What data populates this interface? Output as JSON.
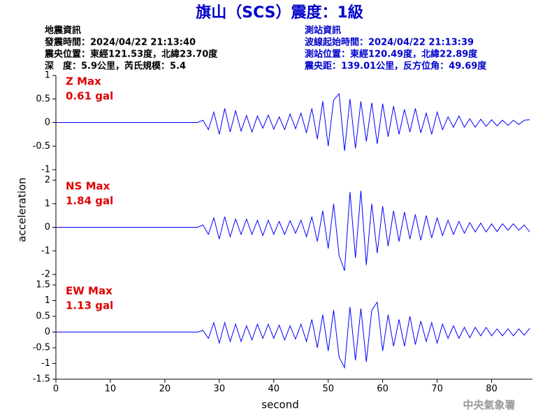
{
  "title": "旗山（SCS）震度：1級",
  "event_info": [
    "地震資訊",
    "發震時間：2024/04/22 21:13:40",
    "震央位置：東經121.53度，北緯23.70度",
    "深　度：5.9公里，芮氏規模：5.4"
  ],
  "station_info": [
    "測站資訊",
    "波線起始時間：2024/04/22 21:13:39",
    "測站位置：東經120.49度，北緯22.89度",
    "震央距：139.01公里，反方位角：49.69度"
  ],
  "footer": "中央氣象署",
  "chart_data": [
    {
      "type": "line",
      "annotation": [
        "Z Max",
        "0.61 gal"
      ],
      "color": "#0000ff",
      "xlim": [
        0,
        87.5
      ],
      "ylim": [
        -1,
        1
      ],
      "yticks": [
        1,
        0.5,
        0,
        -0.5,
        -1
      ],
      "x": [
        0,
        26,
        27,
        28,
        29,
        30,
        31,
        32,
        33,
        34,
        35,
        36,
        37,
        38,
        39,
        40,
        41,
        42,
        43,
        44,
        45,
        46,
        47,
        48,
        49,
        50,
        51,
        52,
        53,
        54,
        55,
        56,
        57,
        58,
        59,
        60,
        61,
        62,
        63,
        64,
        65,
        66,
        67,
        68,
        69,
        70,
        71,
        72,
        73,
        74,
        75,
        76,
        77,
        78,
        79,
        80,
        81,
        82,
        83,
        84,
        85,
        86,
        87
      ],
      "values": [
        0,
        0,
        0.05,
        -0.15,
        0.22,
        -0.25,
        0.3,
        -0.2,
        0.25,
        -0.18,
        0.15,
        -0.2,
        0.14,
        -0.12,
        0.16,
        -0.14,
        0.12,
        -0.15,
        0.18,
        -0.13,
        0.2,
        -0.22,
        0.3,
        -0.35,
        0.45,
        -0.5,
        0.48,
        0.61,
        -0.6,
        0.5,
        -0.55,
        0.45,
        -0.4,
        0.42,
        -0.45,
        0.4,
        -0.3,
        0.35,
        -0.25,
        0.28,
        -0.2,
        0.3,
        -0.22,
        0.2,
        -0.25,
        0.22,
        -0.15,
        0.12,
        -0.1,
        0.14,
        -0.1,
        0.08,
        -0.1,
        0.07,
        -0.08,
        0.06,
        -0.07,
        0.05,
        -0.06,
        0.05,
        -0.04,
        0.05,
        0.06
      ]
    },
    {
      "type": "line",
      "annotation": [
        "NS Max",
        "1.84 gal"
      ],
      "color": "#0000ff",
      "ylabel": "acceleration",
      "xlim": [
        0,
        87.5
      ],
      "ylim": [
        -2,
        2
      ],
      "yticks": [
        2,
        1,
        0,
        -1,
        -2
      ],
      "x": [
        0,
        26,
        27,
        28,
        29,
        30,
        31,
        32,
        33,
        34,
        35,
        36,
        37,
        38,
        39,
        40,
        41,
        42,
        43,
        44,
        45,
        46,
        47,
        48,
        49,
        50,
        51,
        52,
        53,
        54,
        55,
        56,
        57,
        58,
        59,
        60,
        61,
        62,
        63,
        64,
        65,
        66,
        67,
        68,
        69,
        70,
        71,
        72,
        73,
        74,
        75,
        76,
        77,
        78,
        79,
        80,
        81,
        82,
        83,
        84,
        85,
        86,
        87
      ],
      "values": [
        0,
        0,
        0.1,
        -0.3,
        0.4,
        -0.5,
        0.45,
        -0.4,
        0.35,
        -0.3,
        0.35,
        -0.3,
        0.3,
        -0.35,
        0.3,
        -0.3,
        0.25,
        -0.3,
        0.28,
        -0.25,
        0.3,
        -0.4,
        0.45,
        -0.6,
        0.7,
        -0.9,
        1.0,
        -1.2,
        -1.84,
        1.5,
        -1.3,
        1.55,
        -1.6,
        1.0,
        -1.1,
        0.9,
        -0.8,
        0.7,
        -0.6,
        0.65,
        -0.5,
        0.55,
        -0.55,
        0.5,
        -0.45,
        0.4,
        -0.35,
        0.3,
        -0.3,
        0.25,
        -0.25,
        0.2,
        -0.2,
        0.18,
        -0.2,
        0.15,
        -0.18,
        0.15,
        -0.12,
        0.15,
        -0.12,
        0.1,
        -0.2
      ]
    },
    {
      "type": "line",
      "annotation": [
        "EW Max",
        "1.13 gal"
      ],
      "color": "#0000ff",
      "xlabel": "second",
      "xlim": [
        0,
        87.5
      ],
      "ylim": [
        -1.5,
        1.5
      ],
      "yticks": [
        1.5,
        1,
        0.5,
        0,
        -0.5,
        -1,
        -1.5
      ],
      "xticks": [
        0,
        10,
        20,
        30,
        40,
        50,
        60,
        70,
        80
      ],
      "x": [
        0,
        26,
        27,
        28,
        29,
        30,
        31,
        32,
        33,
        34,
        35,
        36,
        37,
        38,
        39,
        40,
        41,
        42,
        43,
        44,
        45,
        46,
        47,
        48,
        49,
        50,
        51,
        52,
        53,
        54,
        55,
        56,
        57,
        58,
        59,
        60,
        61,
        62,
        63,
        64,
        65,
        66,
        67,
        68,
        69,
        70,
        71,
        72,
        73,
        74,
        75,
        76,
        77,
        78,
        79,
        80,
        81,
        82,
        83,
        84,
        85,
        86,
        87
      ],
      "values": [
        0,
        0,
        0.05,
        -0.2,
        0.3,
        -0.35,
        0.3,
        -0.3,
        0.25,
        -0.3,
        0.2,
        -0.25,
        0.25,
        -0.2,
        0.25,
        -0.2,
        0.22,
        -0.25,
        0.2,
        -0.22,
        0.25,
        -0.3,
        0.4,
        -0.5,
        0.55,
        -0.6,
        0.7,
        -0.8,
        -1.13,
        0.8,
        -0.9,
        0.75,
        -0.95,
        0.7,
        0.95,
        -0.6,
        0.55,
        -0.45,
        0.4,
        -0.45,
        0.5,
        -0.4,
        0.35,
        -0.3,
        0.3,
        -0.35,
        0.25,
        -0.2,
        0.2,
        -0.2,
        0.15,
        -0.18,
        0.15,
        -0.12,
        0.15,
        -0.12,
        0.1,
        -0.12,
        0.1,
        -0.12,
        0.1,
        -0.1,
        0.12
      ]
    }
  ]
}
